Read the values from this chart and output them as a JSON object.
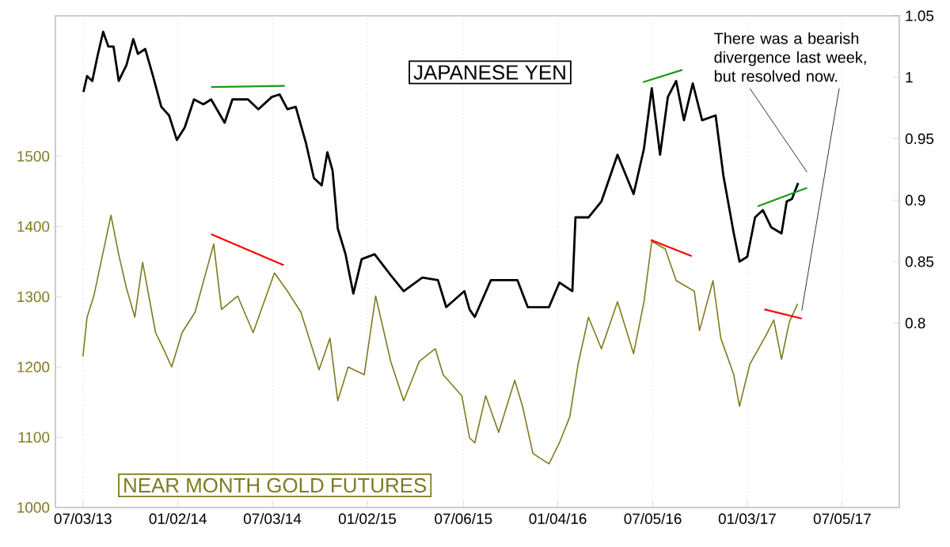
{
  "chart_data": {
    "type": "line",
    "grid": "x",
    "annotations": [
      {
        "text": "There was a bearish divergence last week, but resolved now.",
        "x": "2017-04-18",
        "y": 1269
      }
    ],
    "xlim": [
      "2013-05-11",
      "2017-10-23"
    ],
    "xticks": [
      {
        "value": "2013-07-03",
        "label": "07/03/13"
      },
      {
        "value": "2014-01-02",
        "label": "01/02/14"
      },
      {
        "value": "2014-07-03",
        "label": "07/03/14"
      },
      {
        "value": "2015-01-02",
        "label": "01/02/15"
      },
      {
        "value": "2015-07-06",
        "label": "07/06/15"
      },
      {
        "value": "2016-01-04",
        "label": "01/04/16"
      },
      {
        "value": "2016-07-05",
        "label": "07/05/16"
      },
      {
        "value": "2017-01-03",
        "label": "01/03/17"
      },
      {
        "value": "2017-07-05",
        "label": "07/05/17"
      }
    ],
    "ylim": [
      1000,
      1700
    ],
    "yticks": [
      1000,
      1100,
      1200,
      1300,
      1400,
      1500
    ],
    "y2lim": [
      0.65,
      1.05
    ],
    "y2ticks": [
      0.8,
      0.85,
      0.9,
      0.95,
      1,
      1.05
    ],
    "series": [
      {
        "name": "JAPANESE YEN",
        "color": "#000000",
        "axis": "y2",
        "x": [
          "2013-07-04",
          "2013-07-11",
          "2013-07-21",
          "2013-08-01",
          "2013-08-11",
          "2013-08-21",
          "2013-08-31",
          "2013-09-10",
          "2013-09-25",
          "2013-10-08",
          "2013-10-17",
          "2013-10-31",
          "2013-11-15",
          "2013-12-01",
          "2013-12-16",
          "2013-12-31",
          "2014-01-15",
          "2014-02-02",
          "2014-02-20",
          "2014-03-07",
          "2014-04-02",
          "2014-04-17",
          "2014-05-17",
          "2014-06-06",
          "2014-07-02",
          "2014-07-17",
          "2014-08-01",
          "2014-08-17",
          "2014-08-27",
          "2014-09-06",
          "2014-09-21",
          "2014-10-06",
          "2014-10-17",
          "2014-10-27",
          "2014-11-06",
          "2014-11-21",
          "2014-12-06",
          "2014-12-22",
          "2015-01-16",
          "2015-02-16",
          "2015-03-13",
          "2015-04-18",
          "2015-05-18",
          "2015-06-03",
          "2015-07-08",
          "2015-07-18",
          "2015-07-28",
          "2015-08-28",
          "2015-10-18",
          "2015-11-07",
          "2015-12-18",
          "2016-01-07",
          "2016-02-01",
          "2016-02-07",
          "2016-03-03",
          "2016-03-28",
          "2016-04-28",
          "2016-05-29",
          "2016-06-18",
          "2016-07-03",
          "2016-07-19",
          "2016-08-03",
          "2016-08-19",
          "2016-09-03",
          "2016-09-20",
          "2016-10-08",
          "2016-11-03",
          "2016-11-18",
          "2016-12-08",
          "2016-12-19",
          "2017-01-03",
          "2017-01-18",
          "2017-02-02",
          "2017-02-18",
          "2017-03-10",
          "2017-03-20",
          "2017-03-30",
          "2017-04-11"
        ],
        "values": [
          0.988,
          1.001,
          0.997,
          1.019,
          1.037,
          1.025,
          1.025,
          0.997,
          1.01,
          1.031,
          1.019,
          1.023,
          1.001,
          0.976,
          0.969,
          0.949,
          0.959,
          0.982,
          0.978,
          0.982,
          0.963,
          0.982,
          0.982,
          0.974,
          0.984,
          0.986,
          0.974,
          0.976,
          0.961,
          0.946,
          0.918,
          0.912,
          0.939,
          0.924,
          0.877,
          0.856,
          0.824,
          0.852,
          0.856,
          0.839,
          0.826,
          0.837,
          0.835,
          0.813,
          0.826,
          0.811,
          0.805,
          0.835,
          0.835,
          0.813,
          0.813,
          0.833,
          0.826,
          0.886,
          0.886,
          0.899,
          0.937,
          0.905,
          0.942,
          0.991,
          0.937,
          0.984,
          0.997,
          0.965,
          0.995,
          0.965,
          0.969,
          0.92,
          0.873,
          0.85,
          0.854,
          0.886,
          0.892,
          0.878,
          0.873,
          0.899,
          0.901,
          0.914
        ]
      },
      {
        "name": "NEAR MONTH GOLD FUTURES",
        "color": "#7f7a1e",
        "x": [
          "2013-07-03",
          "2013-07-11",
          "2013-07-24",
          "2013-08-26",
          "2013-09-10",
          "2013-09-25",
          "2013-10-11",
          "2013-10-26",
          "2013-11-20",
          "2013-12-05",
          "2013-12-21",
          "2014-01-10",
          "2014-02-04",
          "2014-03-12",
          "2014-03-27",
          "2014-04-27",
          "2014-05-27",
          "2014-07-07",
          "2014-08-01",
          "2014-08-27",
          "2014-10-01",
          "2014-10-22",
          "2014-11-06",
          "2014-11-26",
          "2014-12-27",
          "2015-01-18",
          "2015-02-16",
          "2015-03-13",
          "2015-04-12",
          "2015-05-13",
          "2015-05-28",
          "2015-07-03",
          "2015-07-18",
          "2015-07-28",
          "2015-08-18",
          "2015-09-12",
          "2015-10-13",
          "2015-10-28",
          "2015-11-17",
          "2015-12-18",
          "2016-01-07",
          "2016-01-27",
          "2016-02-12",
          "2016-03-03",
          "2016-03-28",
          "2016-04-28",
          "2016-05-29",
          "2016-06-18",
          "2016-07-03",
          "2016-07-29",
          "2016-08-19",
          "2016-09-23",
          "2016-10-03",
          "2016-10-29",
          "2016-11-13",
          "2016-12-08",
          "2016-12-19",
          "2017-01-08",
          "2017-02-08",
          "2017-02-23",
          "2017-03-10",
          "2017-03-25",
          "2017-04-10"
        ],
        "values": [
          1215,
          1271,
          1301,
          1416,
          1360,
          1312,
          1271,
          1349,
          1249,
          1226,
          1200,
          1249,
          1278,
          1375,
          1282,
          1301,
          1249,
          1334,
          1308,
          1278,
          1196,
          1241,
          1152,
          1200,
          1189,
          1301,
          1208,
          1152,
          1208,
          1226,
          1189,
          1159,
          1099,
          1092,
          1159,
          1107,
          1181,
          1144,
          1077,
          1062,
          1092,
          1129,
          1204,
          1271,
          1226,
          1293,
          1219,
          1293,
          1379,
          1368,
          1323,
          1308,
          1252,
          1323,
          1241,
          1189,
          1144,
          1204,
          1245,
          1267,
          1211,
          1264,
          1290
        ]
      },
      {
        "color": "#1a9a1a",
        "axis": "y2",
        "x": [
          "2014-03-07",
          "2014-07-27"
        ],
        "values": [
          0.992,
          0.993
        ]
      },
      {
        "color": "#ff0000",
        "x": [
          "2014-03-07",
          "2014-07-25"
        ],
        "values": [
          1389,
          1345
        ]
      },
      {
        "color": "#1a9a1a",
        "axis": "y2",
        "x": [
          "2016-06-16",
          "2016-08-31"
        ],
        "values": [
          0.996,
          1.006
        ]
      },
      {
        "color": "#ff0000",
        "x": [
          "2016-07-01",
          "2016-09-18"
        ],
        "values": [
          1381,
          1358
        ]
      },
      {
        "color": "#1a9a1a",
        "axis": "y2",
        "x": [
          "2017-01-23",
          "2017-04-28"
        ],
        "values": [
          0.895,
          0.91
        ]
      },
      {
        "color": "#ff0000",
        "x": [
          "2017-02-05",
          "2017-04-18"
        ],
        "values": [
          1282,
          1269
        ]
      }
    ]
  }
}
